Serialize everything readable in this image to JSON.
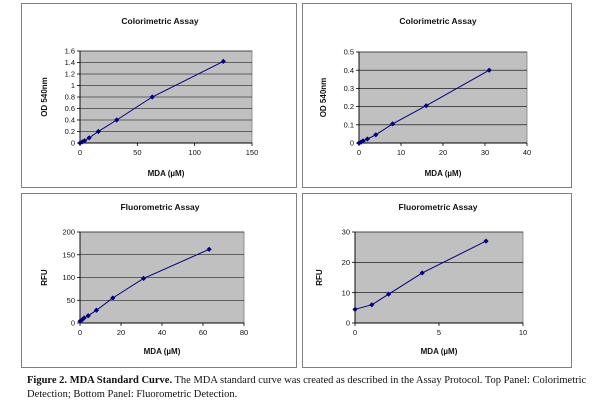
{
  "colors": {
    "plot_bg": "#c0c0c0",
    "line": "#000080",
    "marker": "#000080",
    "grid": "#000000"
  },
  "chart_data": [
    {
      "type": "line",
      "title": "Colorimetric Assay",
      "xlabel": "MDA (µM)",
      "ylabel": "OD 540nm",
      "xlim": [
        0,
        150
      ],
      "ylim": [
        0,
        1.6
      ],
      "xticks": [
        0,
        50,
        100,
        150
      ],
      "xtick_labels": [
        "0",
        "50",
        "100",
        "150"
      ],
      "yticks": [
        0,
        0.2,
        0.4,
        0.6,
        0.8,
        1,
        1.2,
        1.4,
        1.6
      ],
      "ytick_labels": [
        "0",
        "0.2",
        "0.4",
        "0.6",
        "0.8",
        "1",
        "1.2",
        "1.4",
        "1.6"
      ],
      "grid": true,
      "x": [
        0,
        2,
        4,
        8,
        16,
        32,
        63,
        125
      ],
      "y": [
        0.0,
        0.02,
        0.04,
        0.09,
        0.2,
        0.4,
        0.8,
        1.42
      ]
    },
    {
      "type": "line",
      "title": "Colorimetric Assay",
      "xlabel": "MDA (µM)",
      "ylabel": "OD 540nm",
      "xlim": [
        0,
        40
      ],
      "ylim": [
        0,
        0.5
      ],
      "xticks": [
        0,
        10,
        20,
        30,
        40
      ],
      "xtick_labels": [
        "0",
        "10",
        "20",
        "30",
        "40"
      ],
      "yticks": [
        0,
        0.1,
        0.2,
        0.3,
        0.4,
        0.5
      ],
      "ytick_labels": [
        "0",
        "0.1",
        "0.2",
        "0.3",
        "0.4",
        "0.5"
      ],
      "grid": true,
      "x": [
        0,
        0.5,
        1,
        2,
        4,
        8,
        16,
        31
      ],
      "y": [
        0.0,
        0.005,
        0.012,
        0.022,
        0.045,
        0.105,
        0.205,
        0.4
      ]
    },
    {
      "type": "line",
      "title": "Fluorometric Assay",
      "xlabel": "MDA (µM)",
      "ylabel": "RFU",
      "xlim": [
        0,
        80
      ],
      "ylim": [
        0,
        200
      ],
      "xticks": [
        0,
        20,
        40,
        60,
        80
      ],
      "xtick_labels": [
        "0",
        "20",
        "40",
        "60",
        "80"
      ],
      "yticks": [
        0,
        50,
        100,
        150,
        200
      ],
      "ytick_labels": [
        "0",
        "50",
        "100",
        "150",
        "200"
      ],
      "grid": true,
      "x": [
        0,
        1,
        2,
        4,
        8,
        16,
        31,
        63
      ],
      "y": [
        4,
        7,
        11,
        16,
        28,
        55,
        98,
        162
      ]
    },
    {
      "type": "line",
      "title": "Fluorometric Assay",
      "xlabel": "MDA (µM)",
      "ylabel": "RFU",
      "xlim": [
        0,
        10
      ],
      "ylim": [
        0,
        30
      ],
      "xticks": [
        0,
        5,
        10
      ],
      "xtick_labels": [
        "0",
        "5",
        "10"
      ],
      "yticks": [
        0,
        10,
        20,
        30
      ],
      "ytick_labels": [
        "0",
        "10",
        "20",
        "30"
      ],
      "grid": true,
      "x": [
        0,
        1,
        2,
        4,
        7.8
      ],
      "y": [
        4.5,
        6,
        9.5,
        16.5,
        27
      ]
    }
  ],
  "caption": {
    "label": "Figure 2.",
    "heading": "MDA Standard Curve.",
    "text": "The MDA standard curve was created as described in the Assay Protocol.  Top Panel: Colorimetric Detection; Bottom Panel: Fluorometric Detection."
  }
}
